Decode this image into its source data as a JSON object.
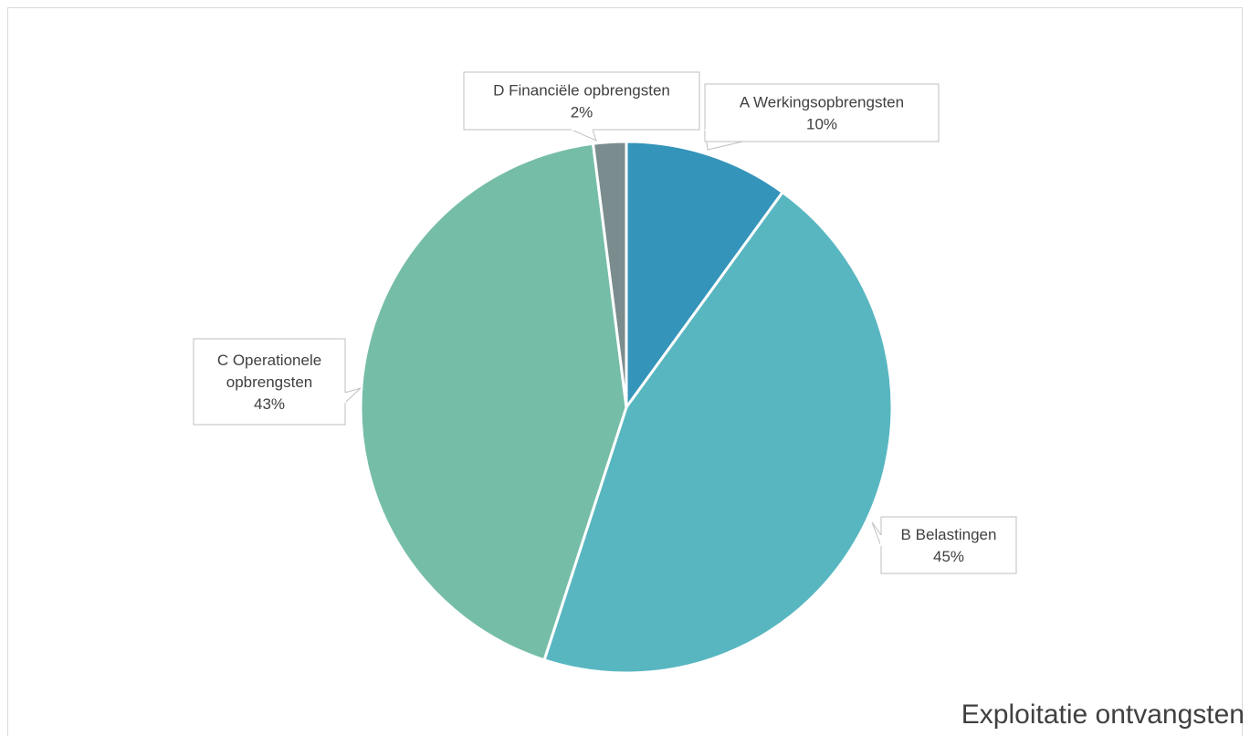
{
  "chart_data": {
    "type": "pie",
    "title": "Exploitatie ontvangsten",
    "slices": [
      {
        "label": "A Werkingsopbrengsten",
        "value": 10,
        "display": "10%",
        "color": "#3494ba"
      },
      {
        "label": "B Belastingen",
        "value": 45,
        "display": "45%",
        "color": "#58b6c0"
      },
      {
        "label": "C Operationele opbrengsten",
        "value": 43,
        "display": "43%",
        "color": "#75bda7"
      },
      {
        "label": "D Financiële opbrengsten",
        "value": 2,
        "display": "2%",
        "color": "#7a8c8e"
      }
    ],
    "legend": "none",
    "data_labels": "callouts"
  }
}
